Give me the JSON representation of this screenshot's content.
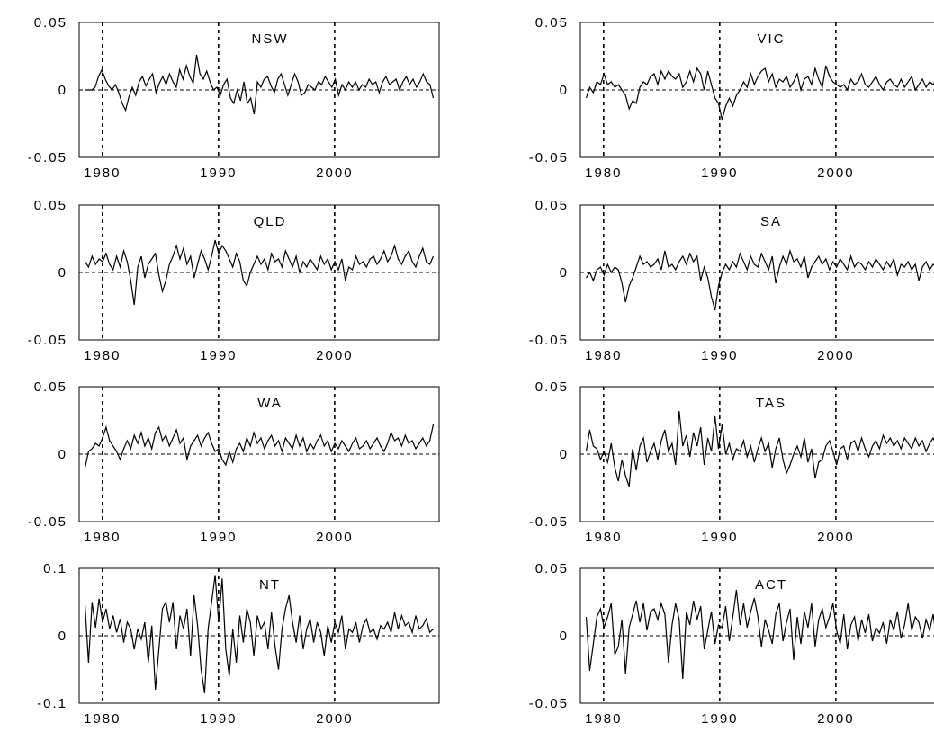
{
  "chart_data": [
    {
      "type": "line",
      "title": "NSW",
      "x_ticks": [
        "1980",
        "1990",
        "2000"
      ],
      "y_ticks": [
        "0.05",
        "0",
        "-0.05"
      ],
      "xlim": [
        1978,
        2009
      ],
      "ylim": [
        -0.05,
        0.05
      ],
      "grid": "dashed vertical at 1980, 1990, 2000; dashed horizontal at 0",
      "series": [
        {
          "x_start": 1978.5,
          "x_end": 2008.5,
          "values": [
            0,
            0,
            0,
            0.002,
            0.01,
            0.015,
            0.008,
            0.003,
            0,
            0.004,
            -0.002,
            -0.01,
            -0.015,
            -0.005,
            0.002,
            -0.004,
            0.006,
            0.01,
            0.003,
            0.008,
            0.012,
            -0.002,
            0.005,
            0.01,
            0.004,
            0.012,
            0.006,
            0.002,
            0.015,
            0.008,
            0.018,
            0.01,
            0.005,
            0.026,
            0.012,
            0.008,
            0.014,
            0.006,
            0,
            0.002,
            -0.004,
            0.004,
            0.008,
            -0.006,
            -0.01,
            0,
            -0.008,
            0.006,
            -0.01,
            -0.006,
            -0.018,
            0.006,
            0.002,
            0.008,
            0.01,
            0.003,
            -0.002,
            0.008,
            0.012,
            0.004,
            -0.004,
            0.004,
            0.012,
            0.006,
            -0.004,
            -0.002,
            0.004,
            0.002,
            0,
            0.006,
            0.004,
            0.01,
            0.006,
            0.002,
            0.008,
            -0.004,
            0.004,
            0,
            0.006,
            0.002,
            0.006,
            0,
            0.004,
            0.002,
            0.008,
            0.004,
            0.006,
            -0.002,
            0.006,
            0.01,
            0.004,
            0.006,
            0.008,
            0,
            0.006,
            0.01,
            0.004,
            0.008,
            0.002,
            0.006,
            0.012,
            0.006,
            0.004,
            -0.006
          ]
        }
      ]
    },
    {
      "type": "line",
      "title": "VIC",
      "x_ticks": [
        "1980",
        "1990",
        "2000"
      ],
      "y_ticks": [
        "0.05",
        "0",
        "-0.05"
      ],
      "xlim": [
        1978,
        2009
      ],
      "ylim": [
        -0.05,
        0.05
      ],
      "grid": "dashed vertical at 1980, 1990, 2000; dashed horizontal at 0",
      "series": [
        {
          "x_start": 1978.5,
          "x_end": 2009,
          "values": [
            -0.006,
            0.002,
            -0.002,
            0.006,
            0.004,
            0.012,
            0.004,
            0.006,
            0.002,
            0.004,
            0,
            -0.004,
            -0.014,
            -0.008,
            -0.01,
            0.002,
            0.006,
            0.004,
            0.01,
            0.012,
            0.004,
            0.014,
            0.008,
            0.014,
            0.01,
            0.008,
            0.012,
            0.002,
            0.006,
            0.014,
            0.006,
            0.016,
            0.012,
            0,
            0.014,
            0.004,
            -0.006,
            -0.01,
            -0.022,
            -0.012,
            -0.006,
            -0.012,
            -0.004,
            0,
            0.006,
            0.002,
            0.012,
            0.004,
            0.01,
            0.014,
            0.016,
            0.006,
            0.012,
            0.002,
            0.008,
            0.006,
            0.01,
            0.002,
            0.006,
            0.012,
            0,
            0.008,
            0.01,
            0.004,
            0.016,
            0.008,
            0.002,
            0.018,
            0.01,
            0.006,
            0.004,
            0.002,
            0.004,
            0,
            0.008,
            0.004,
            0.006,
            0.012,
            0.004,
            0.002,
            0.006,
            0.01,
            0.004,
            0,
            0.006,
            0.008,
            0.004,
            0.002,
            0.008,
            0.002,
            0.006,
            0.01,
            0,
            0.004,
            0.008,
            0.002,
            0.006,
            0.004,
            0.008,
            0.004
          ]
        }
      ]
    },
    {
      "type": "line",
      "title": "QLD",
      "x_ticks": [
        "1980",
        "1990",
        "2000"
      ],
      "y_ticks": [
        "0.05",
        "0",
        "-0.05"
      ],
      "xlim": [
        1978,
        2009
      ],
      "ylim": [
        -0.05,
        0.05
      ],
      "grid": "dashed vertical at 1980, 1990, 2000; dashed horizontal at 0",
      "series": [
        {
          "x_start": 1978.5,
          "x_end": 2008.5,
          "values": [
            0.008,
            0.004,
            0.012,
            0.006,
            0.01,
            0.008,
            0.014,
            0.006,
            0.002,
            0.012,
            0.004,
            0.016,
            0.008,
            -0.006,
            -0.024,
            0.004,
            0.012,
            -0.004,
            0.006,
            0.01,
            0.014,
            -0.002,
            -0.014,
            -0.006,
            0.006,
            0.012,
            0.02,
            0.01,
            0.018,
            0.006,
            0.012,
            -0.004,
            0.006,
            0.016,
            0.01,
            0.002,
            0.012,
            0.024,
            0.014,
            0.02,
            0.016,
            0.01,
            0.004,
            0.014,
            0.008,
            -0.006,
            -0.01,
            0,
            0.006,
            0.012,
            0.006,
            0.01,
            0.002,
            0.014,
            0.008,
            0.01,
            0.004,
            0.016,
            0.01,
            0.004,
            0.012,
            0,
            0.008,
            0.004,
            0.01,
            0.006,
            0.002,
            0.012,
            0.006,
            0.01,
            0.002,
            0.008,
            0.002,
            0.01,
            -0.006,
            0.004,
            0.002,
            0.012,
            0.006,
            0.008,
            0.004,
            0.01,
            0.012,
            0.006,
            0.01,
            0.016,
            0.008,
            0.012,
            0.02,
            0.01,
            0.006,
            0.012,
            0.016,
            0.008,
            0.004,
            0.012,
            0.018,
            0.008,
            0.006,
            0.012
          ]
        }
      ]
    },
    {
      "type": "line",
      "title": "SA",
      "x_ticks": [
        "1980",
        "1990",
        "2000"
      ],
      "y_ticks": [
        "0.05",
        "0",
        "-0.05"
      ],
      "xlim": [
        1978,
        2009
      ],
      "ylim": [
        -0.05,
        0.05
      ],
      "grid": "dashed vertical at 1980, 1990, 2000; dashed horizontal at 0",
      "series": [
        {
          "x_start": 1978.5,
          "x_end": 2009,
          "values": [
            -0.004,
            0,
            -0.006,
            0.002,
            0.004,
            -0.002,
            0.006,
            0,
            0.004,
            0.002,
            -0.008,
            -0.022,
            -0.01,
            -0.004,
            0.004,
            0.012,
            0.006,
            0.008,
            0.004,
            0.006,
            0.01,
            0.002,
            0.016,
            0.004,
            0.006,
            0.002,
            0.008,
            0.012,
            0.006,
            0.014,
            0.008,
            0.012,
            -0.006,
            0.004,
            -0.004,
            -0.018,
            -0.028,
            -0.01,
            0,
            0.006,
            0.002,
            0.008,
            0.004,
            0.014,
            0.008,
            0.002,
            0.012,
            0.006,
            0.004,
            0.014,
            0.008,
            0.002,
            0.012,
            -0.008,
            0.004,
            0.012,
            0.006,
            0.016,
            0.008,
            0.01,
            0.004,
            0.012,
            -0.004,
            0.004,
            0.008,
            0.012,
            0.006,
            0.01,
            0.002,
            0.008,
            0.004,
            0.01,
            0.006,
            0.002,
            0.012,
            0.004,
            0.008,
            0.006,
            0.002,
            0.008,
            0.004,
            0.01,
            0.006,
            0.002,
            0.008,
            0.004,
            0.01,
            -0.002,
            0.006,
            0.004,
            0.008,
            0.002,
            0.006,
            -0.006,
            0.004,
            0.008,
            0.002,
            0.006,
            0.004,
            0.008
          ]
        }
      ]
    },
    {
      "type": "line",
      "title": "WA",
      "x_ticks": [
        "1980",
        "1990",
        "2000"
      ],
      "y_ticks": [
        "0.05",
        "0",
        "-0.05"
      ],
      "xlim": [
        1978,
        2009
      ],
      "ylim": [
        -0.05,
        0.05
      ],
      "grid": "dashed vertical at 1980, 1990, 2000; dashed horizontal at 0",
      "series": [
        {
          "x_start": 1978.5,
          "x_end": 2008.5,
          "values": [
            -0.01,
            0.002,
            0.004,
            0.008,
            0.006,
            0.012,
            0.02,
            0.01,
            0.006,
            0.002,
            -0.004,
            0.004,
            0.01,
            0.004,
            0.014,
            0.008,
            0.016,
            0.006,
            0.012,
            0.004,
            0.016,
            0.02,
            0.01,
            0.014,
            0.006,
            0.012,
            0.018,
            0.008,
            0.012,
            -0.004,
            0.006,
            0.01,
            0.014,
            0.006,
            0.012,
            0.016,
            0.008,
            0.002,
            0.004,
            -0.004,
            -0.008,
            0.002,
            -0.006,
            0.004,
            0.008,
            0.002,
            0.012,
            0.006,
            0.016,
            0.008,
            0.012,
            0.004,
            0.01,
            0.014,
            0.006,
            0.01,
            0.002,
            0.012,
            0.008,
            0.004,
            0.014,
            0.006,
            0.012,
            0.002,
            0.008,
            0.004,
            0.01,
            0.014,
            0.006,
            0.01,
            0.002,
            0.008,
            0.004,
            0.01,
            0.006,
            0.002,
            0.008,
            0.012,
            0.004,
            0.006,
            0.01,
            0.004,
            0.008,
            0.012,
            0.006,
            0.002,
            0.008,
            0.016,
            0.01,
            0.012,
            0.006,
            0.014,
            0.008,
            0.01,
            0.004,
            0.008,
            0.012,
            0.006,
            0.01,
            0.022
          ]
        }
      ]
    },
    {
      "type": "line",
      "title": "TAS",
      "x_ticks": [
        "1980",
        "1990",
        "2000"
      ],
      "y_ticks": [
        "0.05",
        "0",
        "-0.05"
      ],
      "xlim": [
        1978,
        2009
      ],
      "ylim": [
        -0.05,
        0.05
      ],
      "grid": "dashed vertical at 1980, 1990, 2000; dashed horizontal at 0",
      "series": [
        {
          "x_start": 1978.5,
          "x_end": 2009,
          "values": [
            0.002,
            0.018,
            0.006,
            0.004,
            -0.004,
            0.002,
            -0.006,
            0.008,
            -0.01,
            -0.02,
            -0.004,
            -0.016,
            -0.024,
            0.004,
            -0.012,
            0.006,
            0.012,
            -0.006,
            0.002,
            0.008,
            -0.004,
            0.01,
            0.018,
            0.002,
            0.008,
            -0.008,
            0.032,
            0.006,
            0.014,
            -0.002,
            0.016,
            0.006,
            0.02,
            -0.008,
            0.012,
            0.002,
            0.028,
            0.004,
            0.022,
            0,
            0.008,
            -0.004,
            0.004,
            0.002,
            0.01,
            -0.002,
            0.006,
            -0.006,
            0.004,
            0.012,
            0.002,
            0.008,
            -0.01,
            0.004,
            0.012,
            -0.004,
            -0.014,
            -0.008,
            0,
            0.006,
            -0.002,
            0.012,
            -0.006,
            0.004,
            -0.018,
            -0.006,
            -0.004,
            0.006,
            0.01,
            0.002,
            -0.008,
            0.004,
            0.006,
            -0.004,
            0.008,
            0.01,
            0.002,
            0.012,
            0.004,
            -0.002,
            0.006,
            0.01,
            0.004,
            0.014,
            0.008,
            0.012,
            0.006,
            0.01,
            0.004,
            0.012,
            0.008,
            0.004,
            0.012,
            0.006,
            0.01,
            0.002,
            0.008,
            0.012,
            0.006,
            0.014
          ]
        }
      ]
    },
    {
      "type": "line",
      "title": "NT",
      "x_ticks": [
        "1980",
        "1990",
        "2000"
      ],
      "y_ticks": [
        "0.1",
        "0",
        "-0.1"
      ],
      "xlim": [
        1978,
        2009
      ],
      "ylim": [
        -0.1,
        0.1
      ],
      "grid": "dashed vertical at 1980, 1990, 2000; dashed horizontal at 0",
      "series": [
        {
          "x_start": 1978.5,
          "x_end": 2008.5,
          "values": [
            0.045,
            -0.04,
            0.05,
            0.012,
            0.055,
            0.02,
            0.04,
            0.01,
            0.03,
            0.005,
            0.025,
            -0.01,
            0.02,
            0.01,
            -0.02,
            0.01,
            -0.005,
            0.02,
            -0.04,
            0.015,
            -0.08,
            -0.02,
            0.04,
            0.05,
            0.02,
            0.05,
            -0.02,
            0.03,
            0.01,
            0.04,
            -0.03,
            0.06,
            0.015,
            -0.05,
            -0.085,
            0.01,
            0.05,
            0.09,
            0.02,
            0.085,
            -0.02,
            -0.06,
            0.01,
            -0.04,
            0.03,
            -0.01,
            0.04,
            0.02,
            -0.03,
            0.03,
            0.01,
            0.02,
            -0.02,
            0.035,
            -0.015,
            -0.05,
            0.01,
            0.04,
            0.06,
            0.02,
            -0.01,
            0.03,
            -0.02,
            0.01,
            0.025,
            -0.01,
            0.02,
            0.005,
            -0.03,
            0.015,
            -0.01,
            0.02,
            0.005,
            0.03,
            -0.02,
            0.01,
            0.005,
            0.02,
            -0.01,
            0.015,
            0.025,
            0.005,
            0.01,
            -0.005,
            0.015,
            0.01,
            0.02,
            0.005,
            0.035,
            0.01,
            0.03,
            0.015,
            0.02,
            0.005,
            0.03,
            0.01,
            0.015,
            0.025,
            0.005,
            0.01
          ]
        }
      ]
    },
    {
      "type": "line",
      "title": "ACT",
      "x_ticks": [
        "1980",
        "1990",
        "2000"
      ],
      "y_ticks": [
        "0.05",
        "0",
        "-0.05"
      ],
      "xlim": [
        1978,
        2009
      ],
      "ylim": [
        -0.05,
        0.05
      ],
      "grid": "dashed vertical at 1980, 1990, 2000; dashed horizontal at 0",
      "series": [
        {
          "x_start": 1978.5,
          "x_end": 2009,
          "values": [
            0.014,
            -0.026,
            -0.006,
            0.014,
            0.02,
            0.006,
            0.014,
            0.024,
            -0.014,
            -0.008,
            0.012,
            -0.028,
            0.006,
            0.016,
            0.026,
            0.01,
            0.024,
            0.004,
            0.018,
            0.02,
            0.012,
            0.024,
            0.016,
            -0.02,
            0.008,
            0.024,
            0.012,
            -0.032,
            0.018,
            0.008,
            0.026,
            0.012,
            0.022,
            -0.01,
            0.004,
            0.018,
            -0.006,
            0.008,
            0.006,
            0.022,
            -0.004,
            0.014,
            0.034,
            0.008,
            0.024,
            0.006,
            0.018,
            0.028,
            0.014,
            -0.008,
            0.012,
            0.004,
            -0.006,
            0.016,
            0.024,
            -0.004,
            0.01,
            0.02,
            -0.018,
            0.014,
            -0.006,
            0.018,
            0.006,
            0.024,
            -0.008,
            0.012,
            0.02,
            0.006,
            0.014,
            0.024,
            0.004,
            -0.006,
            0.016,
            -0.01,
            0.008,
            0.014,
            -0.004,
            0.012,
            0.002,
            0.016,
            -0.004,
            0.006,
            0.002,
            0.01,
            -0.006,
            0.012,
            0.004,
            0.018,
            -0.002,
            0.008,
            0.024,
            0.004,
            0.014,
            0.01,
            -0.002,
            0.012,
            0.004,
            0.016,
            -0.004,
            0.012
          ]
        }
      ]
    }
  ]
}
